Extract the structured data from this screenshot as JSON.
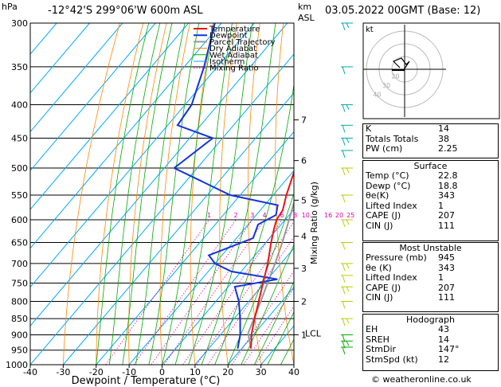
{
  "header": {
    "left_unit": "hPa",
    "location": "-12°42'S 299°06'W 600m ASL",
    "km_label": "km",
    "asl_label": "ASL",
    "datetime": "03.05.2022 00GMT (Base: 12)"
  },
  "footer": "© weatheronline.co.uk",
  "chart_data": {
    "type": "skew-t",
    "xlabel": "Dewpoint / Temperature (°C)",
    "ylabel_right": "Mixing Ratio (g/kg)",
    "x_ticks": [
      -40,
      -30,
      -20,
      -10,
      0,
      10,
      20,
      30,
      40
    ],
    "xlim": [
      -40,
      40
    ],
    "pressure_levels": [
      300,
      350,
      400,
      450,
      500,
      550,
      600,
      650,
      700,
      750,
      800,
      850,
      900,
      950,
      1000
    ],
    "ylim_hpa": [
      300,
      1000
    ],
    "km_ticks": [
      {
        "km": "7",
        "p": 422
      },
      {
        "km": "6",
        "p": 487
      },
      {
        "km": "5",
        "p": 560
      },
      {
        "km": "4",
        "p": 636
      },
      {
        "km": "3",
        "p": 712
      },
      {
        "km": "2",
        "p": 800
      },
      {
        "km": "1",
        "p": 900
      }
    ],
    "lcl_label": "LCL",
    "lcl_p": 895,
    "mixing_ratio_labels": [
      "1",
      "2",
      "3",
      "4",
      "6",
      "8",
      "10",
      "16",
      "20",
      "25"
    ],
    "mixing_ratio_values": [
      1,
      2,
      3,
      4,
      6,
      8,
      10,
      16,
      20,
      25
    ],
    "legend": [
      "Temperature",
      "Dewpoint",
      "Parcel Trajectory",
      "Dry Adiabat",
      "Wet Adiabat",
      "Isotherm",
      "Mixing Ratio"
    ],
    "colors": {
      "temperature": "#ee1111",
      "dewpoint": "#1133dd",
      "parcel": "#999999",
      "dry_adiabat": "#ff8800",
      "wet_adiabat": "#00aa00",
      "isotherm": "#00aaff",
      "mixing_ratio": "#dd00aa"
    },
    "temperature": [
      {
        "p": 945,
        "t": 22.8
      },
      {
        "p": 920,
        "t": 21.0
      },
      {
        "p": 900,
        "t": 19.4
      },
      {
        "p": 850,
        "t": 16.2
      },
      {
        "p": 800,
        "t": 13.0
      },
      {
        "p": 750,
        "t": 9.6
      },
      {
        "p": 700,
        "t": 6.0
      },
      {
        "p": 650,
        "t": 1.6
      },
      {
        "p": 620,
        "t": -1.0
      },
      {
        "p": 600,
        "t": -2.6
      },
      {
        "p": 580,
        "t": -3.2
      },
      {
        "p": 550,
        "t": -6.0
      },
      {
        "p": 500,
        "t": -10.2
      },
      {
        "p": 470,
        "t": -13.6
      },
      {
        "p": 450,
        "t": -16.6
      },
      {
        "p": 430,
        "t": -18.6
      },
      {
        "p": 400,
        "t": -22.6
      },
      {
        "p": 350,
        "t": -30.8
      },
      {
        "p": 300,
        "t": -40.0
      }
    ],
    "dewpoint": [
      {
        "p": 945,
        "t": 18.8
      },
      {
        "p": 900,
        "t": 16.0
      },
      {
        "p": 850,
        "t": 11.8
      },
      {
        "p": 800,
        "t": 7.0
      },
      {
        "p": 760,
        "t": 2.0
      },
      {
        "p": 740,
        "t": 13.0
      },
      {
        "p": 720,
        "t": -3.0
      },
      {
        "p": 700,
        "t": -10.0
      },
      {
        "p": 680,
        "t": -14.0
      },
      {
        "p": 640,
        "t": -5.0
      },
      {
        "p": 610,
        "t": -7.0
      },
      {
        "p": 590,
        "t": -4.0
      },
      {
        "p": 570,
        "t": -6.0
      },
      {
        "p": 550,
        "t": -23.0
      },
      {
        "p": 500,
        "t": -47.0
      },
      {
        "p": 450,
        "t": -43.0
      },
      {
        "p": 430,
        "t": -57.0
      },
      {
        "p": 400,
        "t": -58.0
      },
      {
        "p": 350,
        "t": -64.0
      },
      {
        "p": 300,
        "t": -72.0
      }
    ],
    "parcel": [
      {
        "p": 945,
        "t": 22.8
      },
      {
        "p": 895,
        "t": 18.0
      },
      {
        "p": 850,
        "t": 16.0
      },
      {
        "p": 800,
        "t": 13.6
      },
      {
        "p": 750,
        "t": 11.0
      },
      {
        "p": 700,
        "t": 8.2
      },
      {
        "p": 650,
        "t": 5.0
      },
      {
        "p": 600,
        "t": 1.2
      },
      {
        "p": 550,
        "t": -3.0
      },
      {
        "p": 500,
        "t": -8.0
      },
      {
        "p": 450,
        "t": -13.6
      },
      {
        "p": 400,
        "t": -20.4
      },
      {
        "p": 350,
        "t": -28.0
      },
      {
        "p": 300,
        "t": -37.0
      }
    ]
  },
  "hodograph": {
    "label": "kt",
    "ring_labels": [
      "40",
      "30",
      "20"
    ]
  },
  "indices": {
    "rows": [
      {
        "label": "K",
        "value": "14"
      },
      {
        "label": "Totals Totals",
        "value": "38"
      },
      {
        "label": "PW (cm)",
        "value": "2.25"
      }
    ]
  },
  "surface": {
    "title": "Surface",
    "rows": [
      {
        "label": "Temp (°C)",
        "value": "22.8"
      },
      {
        "label": "Dewp (°C)",
        "value": "18.8"
      },
      {
        "label": "θe(K)",
        "value": "343"
      },
      {
        "label": "Lifted Index",
        "value": "1"
      },
      {
        "label": "CAPE (J)",
        "value": "207"
      },
      {
        "label": "CIN (J)",
        "value": "111"
      }
    ]
  },
  "most_unstable": {
    "title": "Most Unstable",
    "rows": [
      {
        "label": "Pressure (mb)",
        "value": "945"
      },
      {
        "label": "θe (K)",
        "value": "343"
      },
      {
        "label": "Lifted Index",
        "value": "1"
      },
      {
        "label": "CAPE (J)",
        "value": "207"
      },
      {
        "label": "CIN (J)",
        "value": "111"
      }
    ]
  },
  "hodograph_table": {
    "title": "Hodograph",
    "rows": [
      {
        "label": "EH",
        "value": "43"
      },
      {
        "label": "SREH",
        "value": "14"
      },
      {
        "label": "StmDir",
        "value": "147°"
      },
      {
        "label": "StmSpd (kt)",
        "value": "12"
      }
    ]
  }
}
